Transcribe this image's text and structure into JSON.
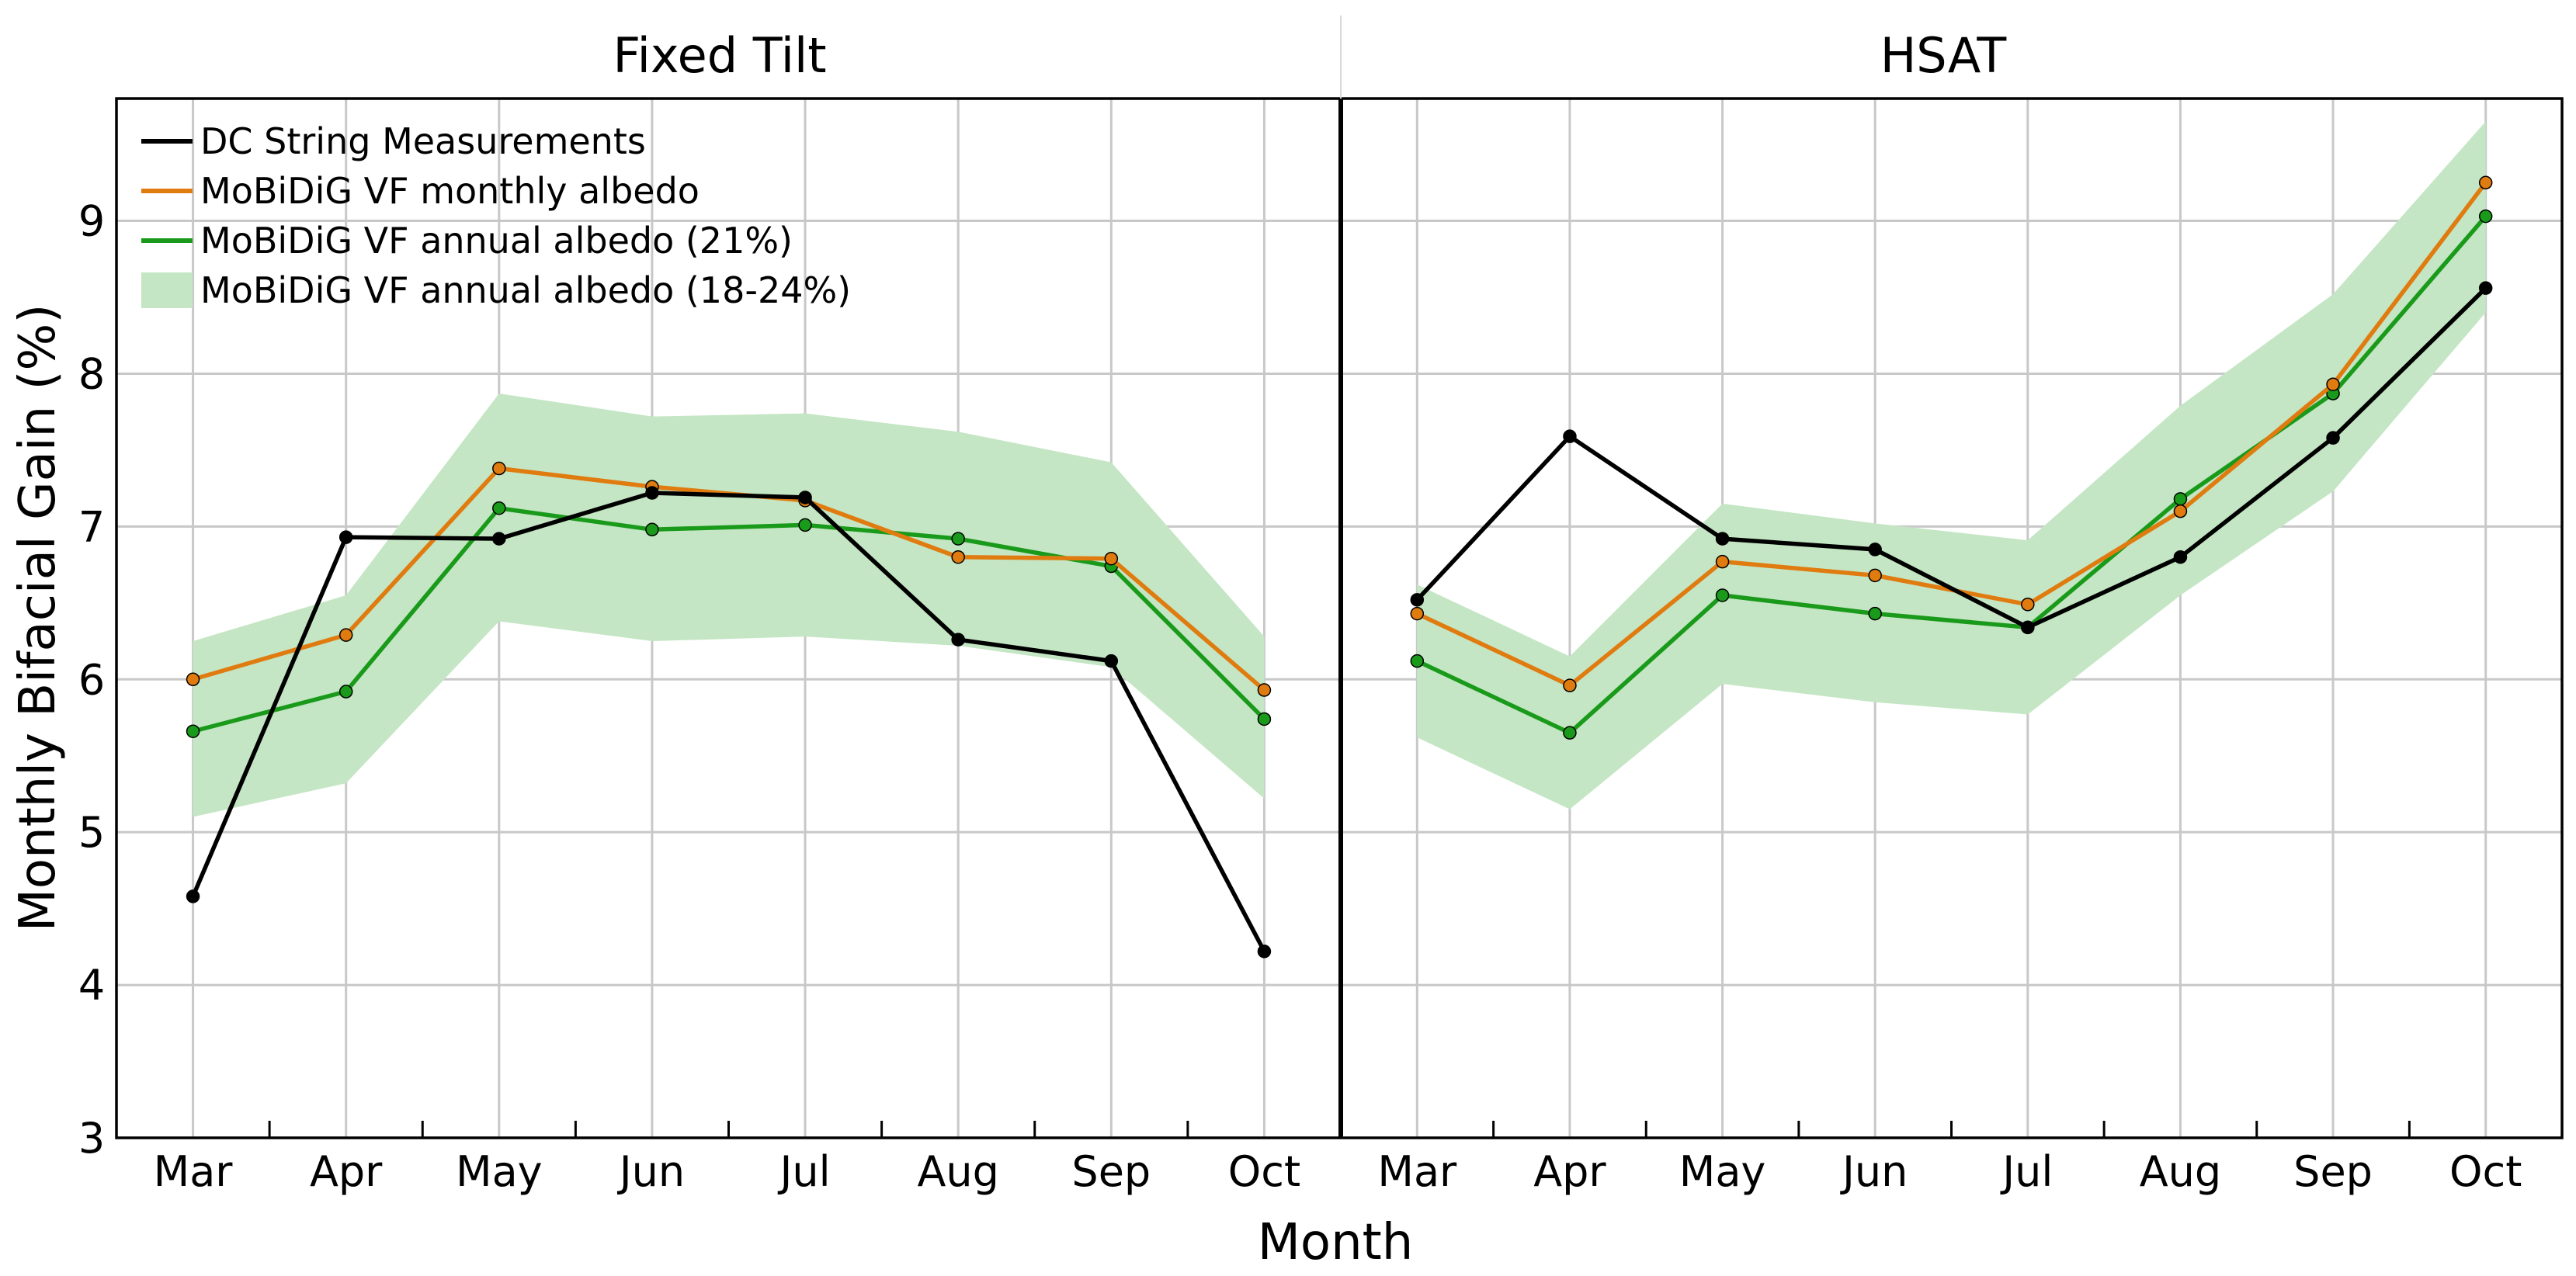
{
  "chart_data": {
    "type": "line",
    "ylabel": "Monthly Bifacial Gain (%)",
    "xlabel": "Month",
    "ylim": [
      3,
      9.8
    ],
    "yticks": [
      3,
      4,
      5,
      6,
      7,
      8,
      9
    ],
    "ytick_labels": [
      "3",
      "4",
      "5",
      "6",
      "7",
      "8",
      "9"
    ],
    "grid": true,
    "legend_position": "top-left",
    "categories": [
      "Mar",
      "Apr",
      "May",
      "Jun",
      "Jul",
      "Aug",
      "Sep",
      "Oct"
    ],
    "colors": {
      "measurement": "#000000",
      "monthly": "#e07b10",
      "annual": "#1a9a1a",
      "band": "#c4e6c4",
      "grid": "#c8c8c8"
    },
    "legend": [
      {
        "label": "DC String Measurements",
        "kind": "line",
        "color": "#000000"
      },
      {
        "label": "MoBiDiG VF monthly albedo",
        "kind": "line",
        "color": "#e07b10"
      },
      {
        "label": "MoBiDiG VF annual albedo (21%)",
        "kind": "line",
        "color": "#1a9a1a"
      },
      {
        "label": "MoBiDiG VF annual albedo (18-24%)",
        "kind": "band",
        "color": "#c4e6c4"
      }
    ],
    "panels": [
      {
        "title": "Fixed Tilt",
        "series": [
          {
            "name": "DC String Measurements",
            "values": [
              4.58,
              6.93,
              6.92,
              7.22,
              7.19,
              6.26,
              6.12,
              4.22
            ]
          },
          {
            "name": "MoBiDiG VF monthly albedo",
            "values": [
              6.0,
              6.29,
              7.38,
              7.26,
              7.17,
              6.8,
              6.79,
              5.93
            ]
          },
          {
            "name": "MoBiDiG VF annual albedo (21%)",
            "values": [
              5.66,
              5.92,
              7.12,
              6.98,
              7.01,
              6.92,
              6.74,
              5.74
            ]
          }
        ],
        "band": {
          "name": "MoBiDiG VF annual albedo (18-24%)",
          "lower": [
            5.1,
            5.32,
            6.38,
            6.25,
            6.28,
            6.22,
            6.08,
            5.22
          ],
          "upper": [
            6.25,
            6.55,
            7.87,
            7.72,
            7.74,
            7.62,
            7.42,
            6.28
          ]
        }
      },
      {
        "title": "HSAT",
        "series": [
          {
            "name": "DC String Measurements",
            "values": [
              6.52,
              7.59,
              6.92,
              6.85,
              6.34,
              6.8,
              7.58,
              8.56
            ]
          },
          {
            "name": "MoBiDiG VF monthly albedo",
            "values": [
              6.43,
              5.96,
              6.77,
              6.68,
              6.49,
              7.1,
              7.93,
              9.25
            ]
          },
          {
            "name": "MoBiDiG VF annual albedo (21%)",
            "values": [
              6.12,
              5.65,
              6.55,
              6.43,
              6.34,
              7.18,
              7.87,
              9.03
            ]
          }
        ],
        "band": {
          "name": "MoBiDiG VF annual albedo (18-24%)",
          "lower": [
            5.62,
            5.15,
            5.97,
            5.85,
            5.77,
            6.55,
            7.23,
            8.4
          ],
          "upper": [
            6.62,
            6.15,
            7.15,
            7.02,
            6.91,
            7.79,
            8.52,
            9.65
          ]
        }
      }
    ]
  }
}
